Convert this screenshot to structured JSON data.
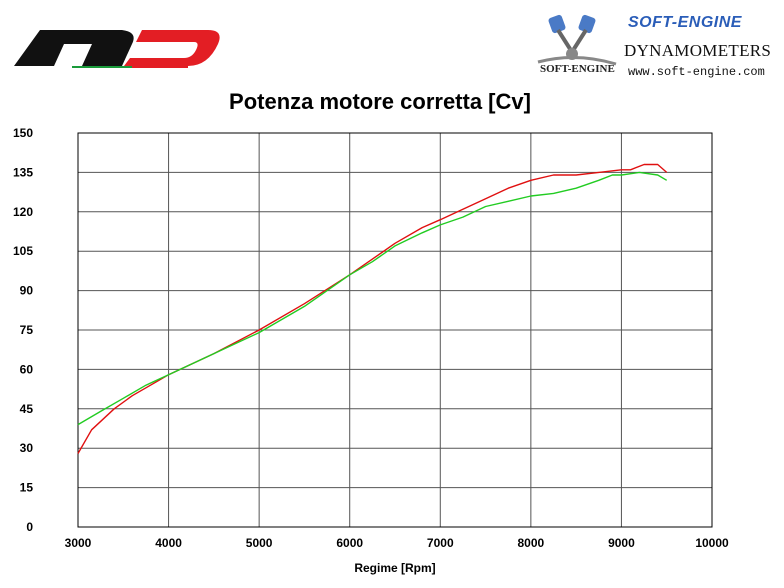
{
  "header": {
    "brand_title": "SOFT-ENGINE",
    "brand_subtitle": "DYNAMOMETERS",
    "brand_url": "www.soft-engine.com",
    "brand_engine_mark": "SOFT-ENGINE"
  },
  "chart_data": {
    "type": "line",
    "title": "Potenza motore corretta [Cv]",
    "xlabel": "Regime [Rpm]",
    "ylabel": "",
    "xlim": [
      3000,
      10000
    ],
    "ylim": [
      0,
      150
    ],
    "xticks": [
      3000,
      4000,
      5000,
      6000,
      7000,
      8000,
      9000,
      10000
    ],
    "yticks": [
      0,
      15,
      30,
      45,
      60,
      75,
      90,
      105,
      120,
      135,
      150
    ],
    "grid": true,
    "series": [
      {
        "name": "red",
        "color": "#e01010",
        "x": [
          3000,
          3150,
          3400,
          3600,
          3800,
          4000,
          4500,
          5000,
          5500,
          6000,
          6250,
          6500,
          6800,
          7000,
          7250,
          7500,
          7750,
          8000,
          8250,
          8500,
          8750,
          9000,
          9100,
          9250,
          9400,
          9500
        ],
        "y": [
          28,
          37,
          45,
          50,
          54,
          58,
          66,
          75,
          85,
          96,
          102,
          108,
          114,
          117,
          121,
          125,
          129,
          132,
          134,
          134,
          135,
          136,
          136,
          138,
          138,
          135
        ]
      },
      {
        "name": "green",
        "color": "#22cc22",
        "x": [
          3000,
          3250,
          3500,
          3750,
          4000,
          4500,
          5000,
          5500,
          6000,
          6250,
          6500,
          6800,
          7000,
          7250,
          7500,
          7750,
          8000,
          8250,
          8500,
          8750,
          8900,
          9000,
          9200,
          9400,
          9500
        ],
        "y": [
          39,
          44,
          49,
          54,
          58,
          66,
          74,
          84,
          96,
          101,
          107,
          112,
          115,
          118,
          122,
          124,
          126,
          127,
          129,
          132,
          134,
          134,
          135,
          134,
          132
        ]
      }
    ]
  }
}
